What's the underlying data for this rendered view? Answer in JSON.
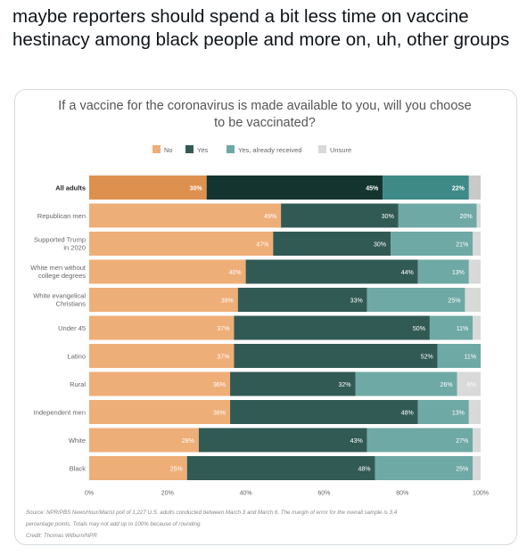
{
  "tweet": {
    "text": "maybe reporters should spend a bit less time on vaccine hestinacy among black people and more on, uh, other groups"
  },
  "colors": {
    "No": "#eeae78",
    "Yes": "#325a55",
    "Yes, already received": "#6fa9a6",
    "Unsure": "#d9d9d9",
    "No_highlight": "#de904f",
    "Yes_highlight": "#14352f",
    "Yes, already received_highlight": "#3d8a86",
    "Unsure_highlight": "#c9c9c9"
  },
  "chart_data": {
    "type": "bar",
    "orientation": "horizontal",
    "stacked": true,
    "title": "If a vaccine for the coronavirus is made available to you, will you choose to be vaccinated?",
    "title_lines": [
      "If a vaccine for the coronavirus is made available to you, will you choose",
      "to be vaccinated?"
    ],
    "legend_position": "top",
    "categories": [
      "All adults",
      "Republican men",
      "Supported Trump in 2020",
      "White men without college degrees",
      "White evangelical Christians",
      "Under 45",
      "Latino",
      "Rural",
      "Independent men",
      "White",
      "Black"
    ],
    "category_lines": [
      [
        "All adults"
      ],
      [
        "Republican men"
      ],
      [
        "Supported Trump",
        "in 2020"
      ],
      [
        "White men without",
        "college degrees"
      ],
      [
        "White evangelical",
        "Christians"
      ],
      [
        "Under 45"
      ],
      [
        "Latino"
      ],
      [
        "Rural"
      ],
      [
        "Independent men"
      ],
      [
        "White"
      ],
      [
        "Black"
      ]
    ],
    "highlight_category": "All adults",
    "series": [
      {
        "name": "No",
        "values": [
          30,
          49,
          47,
          40,
          38,
          37,
          37,
          36,
          36,
          28,
          25
        ]
      },
      {
        "name": "Yes",
        "values": [
          45,
          30,
          30,
          44,
          33,
          50,
          52,
          32,
          48,
          43,
          48
        ]
      },
      {
        "name": "Yes, already received",
        "values": [
          22,
          20,
          21,
          13,
          25,
          11,
          11,
          26,
          13,
          27,
          25
        ]
      },
      {
        "name": "Unsure",
        "values": [
          3,
          1,
          2,
          3,
          4,
          2,
          0,
          6,
          3,
          2,
          2
        ]
      }
    ],
    "show_label": [
      [
        true,
        true,
        true,
        true,
        true,
        true,
        true,
        true,
        true,
        true,
        true
      ],
      [
        true,
        true,
        true,
        true,
        true,
        true,
        true,
        true,
        true,
        true,
        true
      ],
      [
        true,
        true,
        true,
        true,
        true,
        true,
        true,
        true,
        true,
        true,
        true
      ],
      [
        false,
        false,
        false,
        false,
        false,
        false,
        false,
        true,
        false,
        false,
        false
      ]
    ],
    "xticks": [
      "0%",
      "20%",
      "40%",
      "60%",
      "80%",
      "100%"
    ],
    "xlim": [
      0,
      100
    ],
    "grid": false,
    "source": [
      "Source: NPR/PBS NewsHour/Marist poll of 1,227 U.S. adults conducted between March 3 and March 6. The margin of error for the overall sample is 3.4",
      "percentage points. Totals may not add up to 100% because of rounding.",
      "Credit: Thomas Wilburn/NPR"
    ]
  }
}
